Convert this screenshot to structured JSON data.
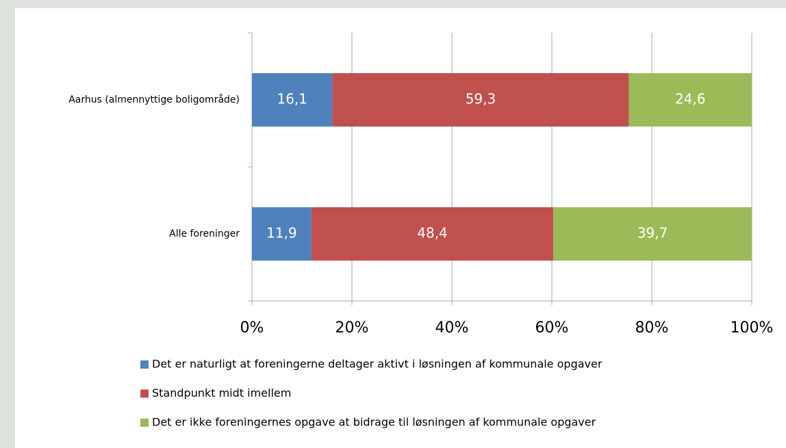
{
  "chart_data": {
    "type": "stacked_hbar",
    "categories": [
      "Aarhus (almennyttige boligområde)",
      "Alle foreninger"
    ],
    "series": [
      {
        "name": "Det er naturligt at foreningerne deltager aktivt i løsningen af kommunale opgaver",
        "color": "#4f81bd",
        "values": [
          16.1,
          11.9
        ],
        "value_labels": [
          "16,1",
          "11,9"
        ]
      },
      {
        "name": "Standpunkt midt imellem",
        "color": "#c0504d",
        "values": [
          59.3,
          48.4
        ],
        "value_labels": [
          "59,3",
          "48,4"
        ]
      },
      {
        "name": "Det er ikke foreningernes opgave at bidrage til løsningen af kommunale opgaver",
        "color": "#9bbb59",
        "values": [
          24.6,
          39.7
        ],
        "value_labels": [
          "24,6",
          "39,7"
        ]
      }
    ],
    "xlim": [
      0,
      100
    ],
    "xticks": [
      {
        "value": 0,
        "label": "0%"
      },
      {
        "value": 20,
        "label": "20%"
      },
      {
        "value": 40,
        "label": "40%"
      },
      {
        "value": 60,
        "label": "60%"
      },
      {
        "value": 80,
        "label": "80%"
      },
      {
        "value": 100,
        "label": "100%"
      }
    ],
    "grid": true,
    "legend": "bottom"
  }
}
